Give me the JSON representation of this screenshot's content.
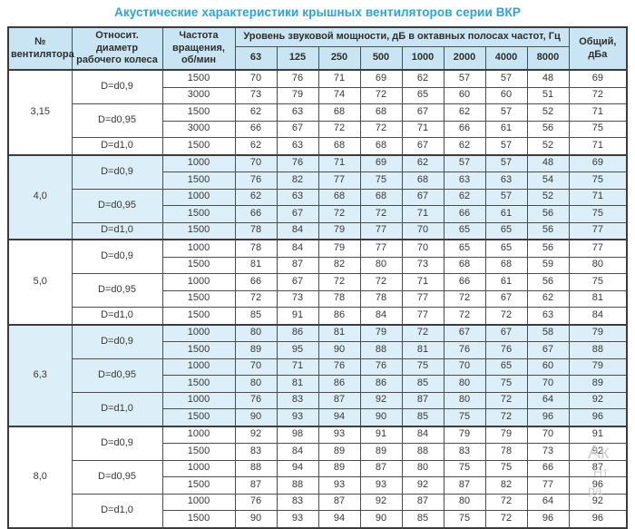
{
  "title": "Акустические характеристики крышных вентиляторов серии ВКР",
  "colors": {
    "title_accent": "#29a5d6",
    "header_bg": "#c9e5f3",
    "group_tint_bg": "#dceef8",
    "border": "#3c3c3c"
  },
  "table": {
    "header": {
      "fan": "№\nвентилятора",
      "diameter": "Относит. диаметр\nрабочего колеса",
      "rpm": "Частота\nвращения,\nоб/мин",
      "levels": "Уровень звуковой мощности, дБ в октавных полосах частот, Гц",
      "freqs": [
        "63",
        "125",
        "250",
        "500",
        "1000",
        "2000",
        "4000",
        "8000"
      ],
      "total": "Общий,\nдБа"
    },
    "groups": [
      {
        "fan": "3,15",
        "tinted": false,
        "diameters": [
          {
            "label": "D=d0,9",
            "rows": [
              {
                "rpm": "1500",
                "values": [
                  70,
                  76,
                  71,
                  69,
                  62,
                  57,
                  57,
                  48
                ],
                "total": 69
              },
              {
                "rpm": "3000",
                "values": [
                  73,
                  79,
                  74,
                  72,
                  65,
                  60,
                  60,
                  51
                ],
                "total": 72
              }
            ]
          },
          {
            "label": "D=d0,95",
            "rows": [
              {
                "rpm": "1500",
                "values": [
                  62,
                  63,
                  68,
                  68,
                  67,
                  62,
                  57,
                  52
                ],
                "total": 71
              },
              {
                "rpm": "3000",
                "values": [
                  66,
                  67,
                  72,
                  72,
                  71,
                  66,
                  61,
                  56
                ],
                "total": 75
              }
            ]
          },
          {
            "label": "D=d1,0",
            "rows": [
              {
                "rpm": "1500",
                "values": [
                  62,
                  63,
                  68,
                  68,
                  67,
                  62,
                  57,
                  52
                ],
                "total": 71
              }
            ]
          }
        ]
      },
      {
        "fan": "4,0",
        "tinted": true,
        "diameters": [
          {
            "label": "D=d0,9",
            "rows": [
              {
                "rpm": "1000",
                "values": [
                  70,
                  76,
                  71,
                  69,
                  62,
                  57,
                  57,
                  48
                ],
                "total": 69
              },
              {
                "rpm": "1500",
                "values": [
                  76,
                  82,
                  77,
                  75,
                  68,
                  63,
                  63,
                  54
                ],
                "total": 75
              }
            ]
          },
          {
            "label": "D=d0,95",
            "rows": [
              {
                "rpm": "1000",
                "values": [
                  62,
                  63,
                  68,
                  68,
                  67,
                  62,
                  57,
                  52
                ],
                "total": 71
              },
              {
                "rpm": "1500",
                "values": [
                  66,
                  67,
                  72,
                  72,
                  71,
                  66,
                  61,
                  56
                ],
                "total": 75
              }
            ]
          },
          {
            "label": "D=d1,0",
            "rows": [
              {
                "rpm": "1500",
                "values": [
                  78,
                  84,
                  79,
                  77,
                  70,
                  65,
                  65,
                  56
                ],
                "total": 77
              }
            ]
          }
        ]
      },
      {
        "fan": "5,0",
        "tinted": false,
        "diameters": [
          {
            "label": "D=d0,9",
            "rows": [
              {
                "rpm": "1000",
                "values": [
                  78,
                  84,
                  79,
                  77,
                  70,
                  65,
                  65,
                  56
                ],
                "total": 77
              },
              {
                "rpm": "1500",
                "values": [
                  81,
                  87,
                  82,
                  80,
                  73,
                  68,
                  68,
                  59
                ],
                "total": 80
              }
            ]
          },
          {
            "label": "D=d0,95",
            "rows": [
              {
                "rpm": "1000",
                "values": [
                  66,
                  67,
                  72,
                  72,
                  71,
                  66,
                  61,
                  56
                ],
                "total": 75
              },
              {
                "rpm": "1500",
                "values": [
                  72,
                  73,
                  78,
                  78,
                  77,
                  72,
                  67,
                  62
                ],
                "total": 81
              }
            ]
          },
          {
            "label": "D=d1,0",
            "rows": [
              {
                "rpm": "1500",
                "values": [
                  85,
                  91,
                  86,
                  84,
                  77,
                  72,
                  72,
                  63
                ],
                "total": 84
              }
            ]
          }
        ]
      },
      {
        "fan": "6,3",
        "tinted": true,
        "diameters": [
          {
            "label": "D=d0,9",
            "rows": [
              {
                "rpm": "1000",
                "values": [
                  80,
                  86,
                  81,
                  79,
                  72,
                  67,
                  67,
                  58
                ],
                "total": 79
              },
              {
                "rpm": "1500",
                "values": [
                  89,
                  95,
                  90,
                  88,
                  81,
                  76,
                  76,
                  67
                ],
                "total": 88
              }
            ]
          },
          {
            "label": "D=d0,95",
            "rows": [
              {
                "rpm": "1000",
                "values": [
                  70,
                  71,
                  76,
                  76,
                  75,
                  70,
                  65,
                  60
                ],
                "total": 79
              },
              {
                "rpm": "1500",
                "values": [
                  80,
                  81,
                  86,
                  86,
                  85,
                  80,
                  75,
                  70
                ],
                "total": 89
              }
            ]
          },
          {
            "label": "D=d1,0",
            "rows": [
              {
                "rpm": "1000",
                "values": [
                  76,
                  83,
                  87,
                  92,
                  87,
                  80,
                  72,
                  64
                ],
                "total": 92
              },
              {
                "rpm": "1500",
                "values": [
                  90,
                  93,
                  94,
                  90,
                  85,
                  75,
                  72,
                  96
                ],
                "total": 96
              }
            ]
          }
        ]
      },
      {
        "fan": "8,0",
        "tinted": false,
        "diameters": [
          {
            "label": "D=d0,9",
            "rows": [
              {
                "rpm": "1000",
                "values": [
                  92,
                  98,
                  93,
                  91,
                  84,
                  79,
                  79,
                  70
                ],
                "total": 91
              },
              {
                "rpm": "1500",
                "values": [
                  83,
                  84,
                  89,
                  89,
                  88,
                  83,
                  78,
                  73
                ],
                "total": 92
              }
            ]
          },
          {
            "label": "D=d0,95",
            "rows": [
              {
                "rpm": "1000",
                "values": [
                  88,
                  94,
                  89,
                  87,
                  80,
                  75,
                  75,
                  66
                ],
                "total": 87
              },
              {
                "rpm": "1500",
                "values": [
                  87,
                  88,
                  93,
                  93,
                  92,
                  87,
                  82,
                  77
                ],
                "total": 96
              }
            ]
          },
          {
            "label": "D=d1,0",
            "rows": [
              {
                "rpm": "1000",
                "values": [
                  76,
                  83,
                  87,
                  92,
                  87,
                  80,
                  72,
                  64
                ],
                "total": 92
              },
              {
                "rpm": "1500",
                "values": [
                  90,
                  93,
                  94,
                  90,
                  85,
                  75,
                  72,
                  96
                ],
                "total": 96
              }
            ]
          }
        ]
      }
    ]
  },
  "watermark": {
    "lines": [
      "Ак",
      "Нт",
      "ра"
    ]
  }
}
